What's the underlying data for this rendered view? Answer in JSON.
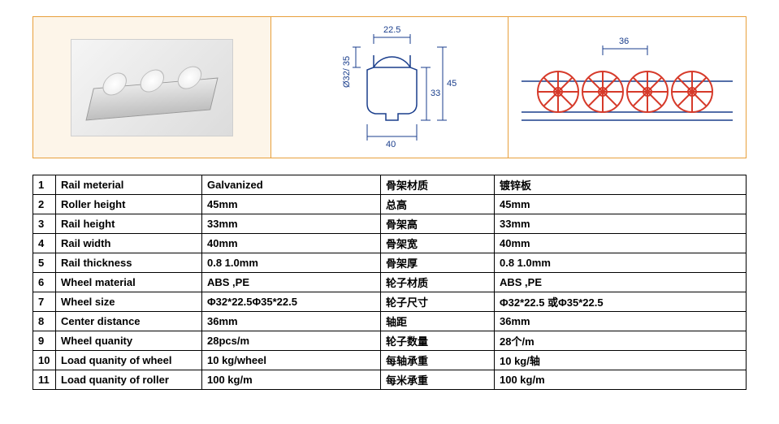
{
  "diagrams": {
    "profile": {
      "top_width": "22.5",
      "outer_height": "45",
      "inner_height": "33",
      "bottom_width": "40",
      "diameter_label": "Ø32/ 35"
    },
    "side": {
      "center_distance": "36"
    }
  },
  "spec_rows": [
    {
      "n": "1",
      "en_label": "Rail meterial",
      "en_val": "Galvanized",
      "cn_label": "骨架材质",
      "cn_val": "镀锌板"
    },
    {
      "n": "2",
      "en_label": "Roller height",
      "en_val": "45mm",
      "cn_label": "总高",
      "cn_val": "45mm"
    },
    {
      "n": "3",
      "en_label": "Rail height",
      "en_val": "33mm",
      "cn_label": "骨架高",
      "cn_val": "33mm"
    },
    {
      "n": "4",
      "en_label": "Rail width",
      "en_val": "40mm",
      "cn_label": "骨架宽",
      "cn_val": "40mm"
    },
    {
      "n": "5",
      "en_label": "Rail thickness",
      "en_val": "0.8  1.0mm",
      "cn_label": "骨架厚",
      "cn_val": "0.8  1.0mm"
    },
    {
      "n": "6",
      "en_label": "Wheel material",
      "en_val": "ABS ,PE",
      "cn_label": "轮子材质",
      "cn_val": "ABS ,PE"
    },
    {
      "n": "7",
      "en_label": "Wheel size",
      "en_val": "Φ32*22.5Φ35*22.5",
      "cn_label": "轮子尺寸",
      "cn_val": "Φ32*22.5 或Φ35*22.5"
    },
    {
      "n": "8",
      "en_label": "Center distance",
      "en_val": "36mm",
      "cn_label": "轴距",
      "cn_val": "36mm"
    },
    {
      "n": "9",
      "en_label": "Wheel quanity",
      "en_val": "28pcs/m",
      "cn_label": "轮子数量",
      "cn_val": "28个/m"
    },
    {
      "n": "10",
      "en_label": "Load quanity of wheel",
      "en_val": "10 kg/wheel",
      "cn_label": "每轴承重",
      "cn_val": "10 kg/轴"
    },
    {
      "n": "11",
      "en_label": "Load quanity of roller",
      "en_val": "100 kg/m",
      "cn_label": "每米承重",
      "cn_val": "100 kg/m"
    }
  ]
}
